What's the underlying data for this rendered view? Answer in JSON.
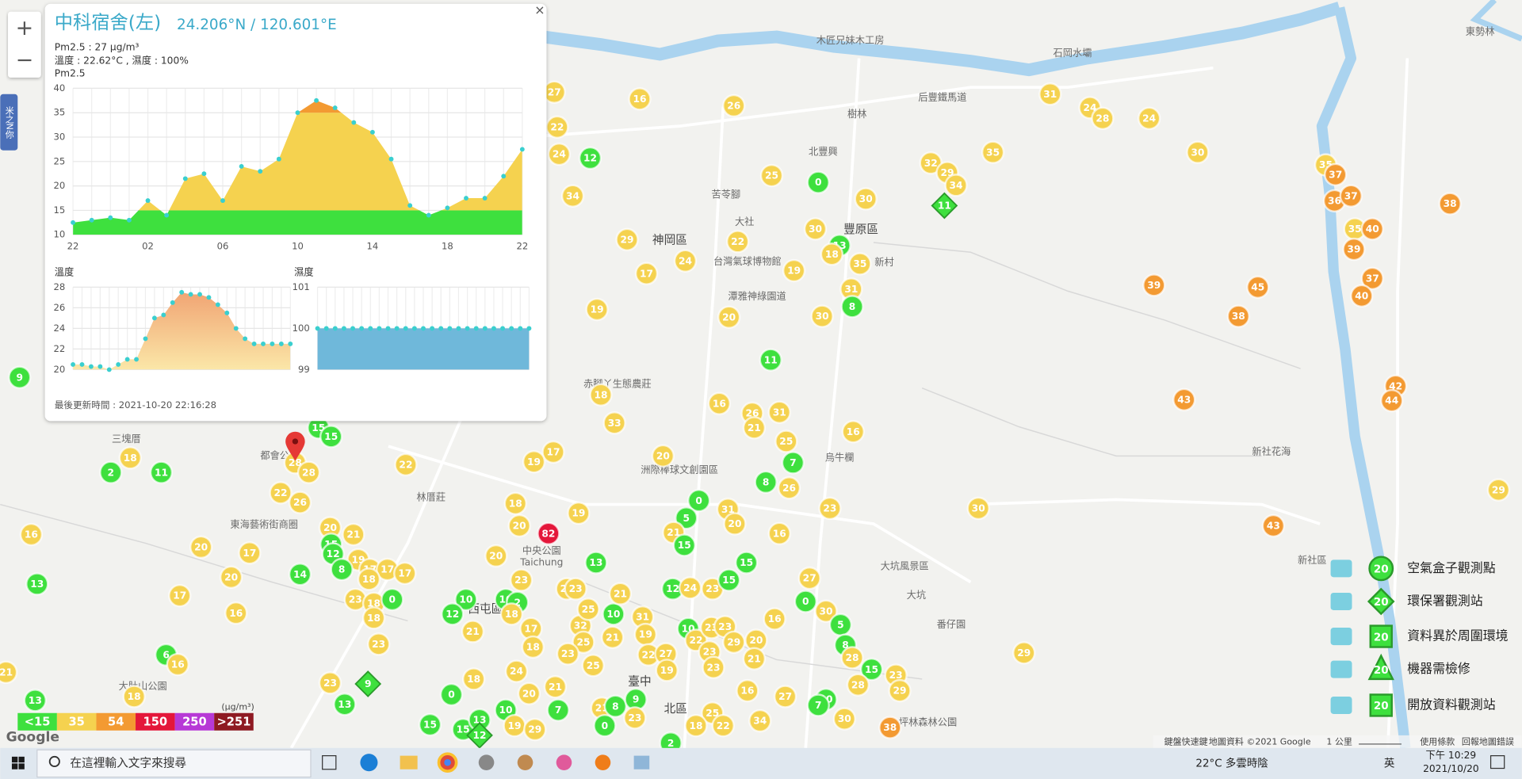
{
  "popup": {
    "title": "中科宿舍(左)",
    "coords": "24.206°N / 120.601°E",
    "close": "×",
    "pm_line": "Pm2.5 : 27 μg/m³",
    "env_line": "溫度 : 22.62°C , 濕度 : 100%",
    "updated": "最後更新時間 : 2021-10-20 22:16:28",
    "pm_chart": {
      "type": "area",
      "title": "Pm2.5",
      "categories": [
        "22",
        null,
        null,
        null,
        "02",
        null,
        null,
        null,
        "06",
        null,
        null,
        null,
        "10",
        null,
        null,
        null,
        "14",
        null,
        null,
        null,
        "18",
        null,
        null,
        null,
        "22"
      ],
      "values": [
        12.5,
        13,
        13.5,
        13,
        17,
        14,
        21.5,
        22.5,
        17,
        24,
        23,
        25.5,
        35,
        37.5,
        36,
        33,
        31,
        25.5,
        16,
        14,
        15.5,
        17.5,
        17.5,
        22,
        27.5
      ],
      "color": "#3acfcf",
      "ylim": [
        10,
        40
      ],
      "yticks": [
        10,
        15,
        20,
        25,
        30,
        35,
        40
      ],
      "grid": true
    },
    "temp_chart": {
      "type": "area",
      "title": "溫度",
      "values": [
        20.5,
        20.5,
        20.3,
        20.3,
        20,
        20.5,
        21,
        21,
        23,
        25,
        25.3,
        26.5,
        27.5,
        27.3,
        27.3,
        27,
        26.3,
        25.5,
        24,
        23,
        22.5,
        22.5,
        22.5,
        22.5,
        22.5
      ],
      "color": "#3acfcf",
      "fill": "#f3b27a",
      "ylim": [
        20,
        28
      ],
      "yticks": [
        20,
        22,
        24,
        26,
        28
      ],
      "grid": true
    },
    "hum_chart": {
      "type": "area",
      "title": "濕度",
      "values": [
        100,
        100,
        100,
        100,
        100,
        100,
        100,
        100,
        100,
        100,
        100,
        100,
        100,
        100,
        100,
        100,
        100,
        100,
        100,
        100,
        100,
        100,
        100,
        100,
        100
      ],
      "color": "#3acfcf",
      "fill": "#6fb8da",
      "ylim": [
        99,
        101
      ],
      "yticks": [
        99,
        100,
        101
      ],
      "grid": true
    }
  },
  "color_scale": {
    "unit": "(μg/m³)",
    "levels": [
      {
        "label": "<15",
        "value": 15,
        "color": "#3ee03e"
      },
      {
        "label": "35",
        "value": 35,
        "color": "#f5d24f"
      },
      {
        "label": "54",
        "value": 54,
        "color": "#f39a32"
      },
      {
        "label": "150",
        "value": 150,
        "color": "#e4173a"
      },
      {
        "label": "250",
        "value": 250,
        "color": "#b739d6"
      },
      {
        "label": ">251",
        "value": 251,
        "color": "#8e1a22"
      }
    ]
  },
  "stations": [
    31,
    24,
    28,
    24,
    30,
    35,
    32,
    29,
    34,
    35,
    37,
    36,
    37,
    35,
    40,
    39,
    37,
    40,
    38,
    39,
    45,
    38,
    42,
    44,
    43,
    43,
    30,
    29,
    29,
    38,
    27,
    16,
    26,
    22,
    24,
    12,
    34,
    0,
    25,
    30,
    29,
    22,
    24,
    17,
    30,
    13,
    18,
    35,
    19,
    31,
    8,
    20,
    30,
    19,
    11,
    18,
    33,
    16,
    26,
    31,
    21,
    25,
    7,
    16,
    20,
    17,
    19,
    8,
    26,
    23,
    0,
    5,
    31,
    20,
    16,
    21,
    15,
    19,
    18,
    20,
    82,
    20,
    13,
    15,
    27,
    0,
    30,
    5,
    8,
    28,
    15,
    23,
    29,
    28,
    10,
    7,
    30,
    16,
    27,
    16,
    34,
    9,
    15,
    15,
    28,
    28,
    18,
    2,
    11,
    22,
    22,
    26,
    16,
    20,
    17,
    20,
    17,
    16,
    13,
    14,
    20,
    21,
    15,
    12,
    19,
    8,
    17,
    17,
    17,
    18,
    23,
    18,
    0,
    18,
    23,
    23,
    13,
    6,
    16,
    18,
    21,
    13,
    0,
    18,
    10,
    12,
    21,
    10,
    2,
    18,
    23,
    17,
    18,
    24,
    21,
    15,
    15,
    13,
    10,
    19,
    20,
    29,
    7,
    32,
    25,
    25,
    22,
    23,
    25,
    23,
    10,
    21,
    21,
    31,
    19,
    22,
    27,
    19,
    21,
    8,
    9,
    23,
    0,
    12,
    24,
    23,
    15,
    10,
    22,
    23,
    23,
    29,
    23,
    23,
    20,
    21,
    25,
    22,
    18,
    2
  ],
  "epa_stations": [
    11,
    9,
    12
  ],
  "places": [
    "木匠兄妹木工房",
    "石岡水壩",
    "后豐鐵馬道",
    "樹林",
    "北豐興",
    "苦苓腳",
    "大社",
    "豐原區",
    "新村",
    "神岡區",
    "台灣氣球博物館",
    "潭雅神綠園道",
    "赤腳丫生態農莊",
    "烏牛欄",
    "洲際棒球文創園區",
    "林厝莊",
    "東海藝術街商圈",
    "中央公園",
    "Taichung",
    "大坑風景區",
    "新社花海",
    "新社區",
    "三塊厝",
    "都會公園",
    "西屯區",
    "番仔園",
    "大肚山公園",
    "臺中",
    "北區",
    "坪林森林公園",
    "東勢林",
    "大坑"
  ],
  "legend": [
    {
      "label": "空氣盒子觀測點",
      "sample": 20
    },
    {
      "label": "環保署觀測站",
      "sample": 20
    },
    {
      "label": "資料異於周圍環境",
      "sample": 20
    },
    {
      "label": "機器需檢修",
      "sample": 20
    },
    {
      "label": "開放資料觀測站",
      "sample": 20
    }
  ],
  "zoom": {
    "in": "+",
    "out": "−"
  },
  "side_tab": "米之N你",
  "google": "Google",
  "attribution": [
    "鍵盤快速鍵",
    "地圖資料 ©2021 Google",
    "1 公里",
    "使用條款",
    "回報地圖錯誤"
  ],
  "taskbar": {
    "search": "在這裡輸入文字來搜尋",
    "weather": "22°C 多雲時陰",
    "ime": "英",
    "time": "下午 10:29",
    "date": "2021/10/20"
  }
}
